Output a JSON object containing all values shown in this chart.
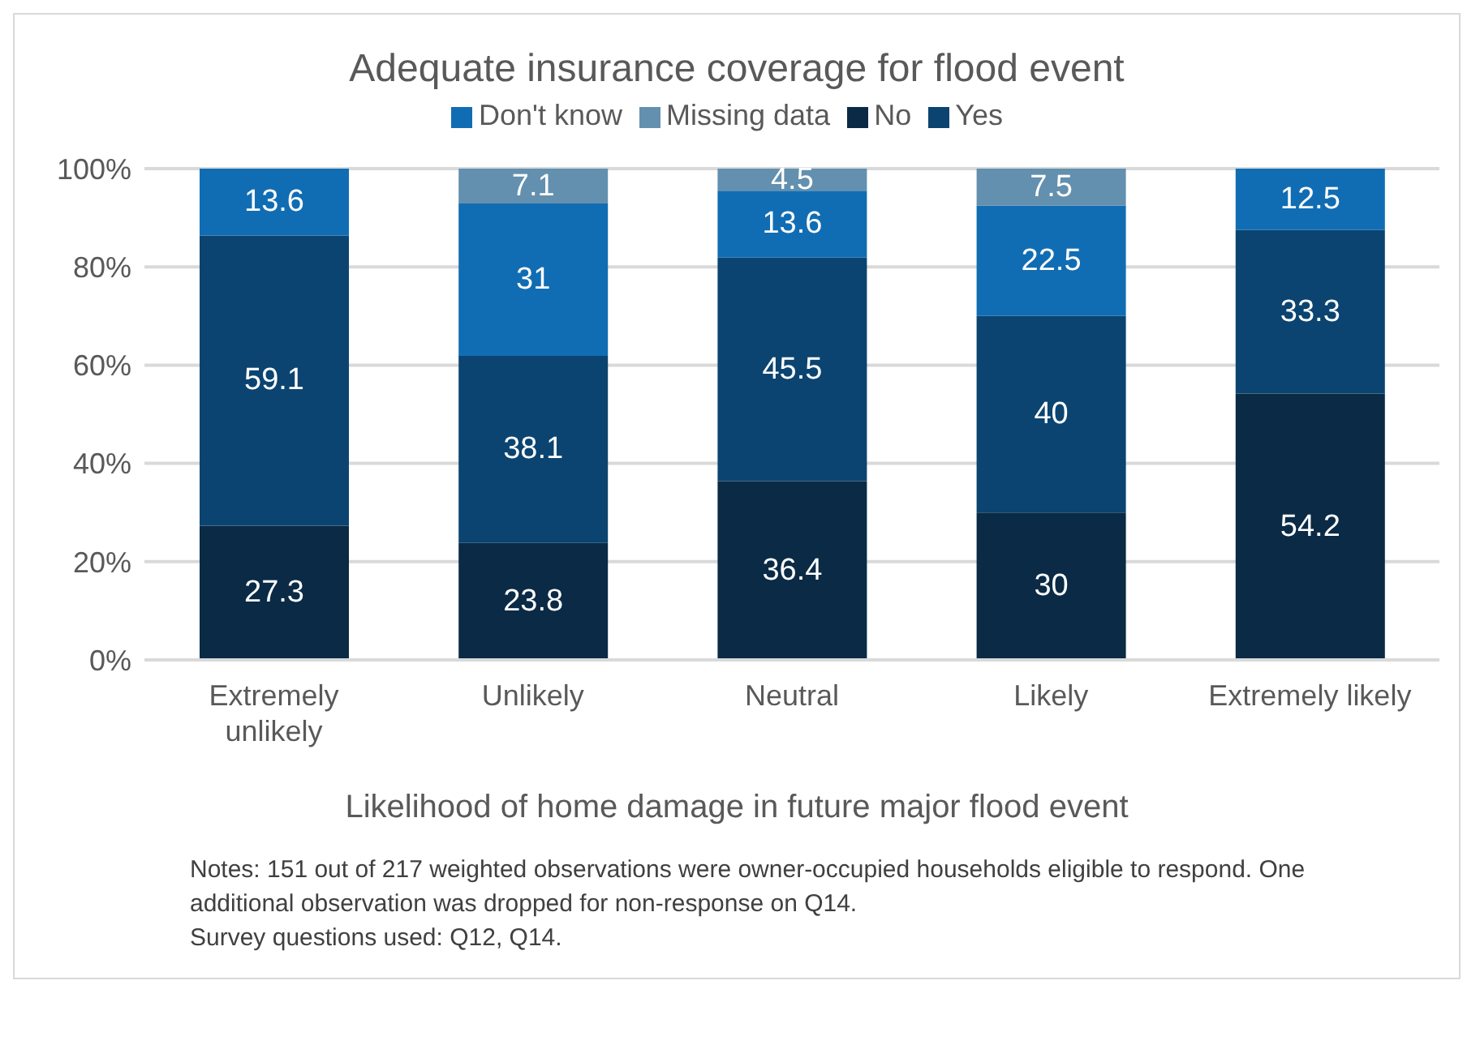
{
  "chart_data": {
    "type": "bar",
    "title": "Adequate insurance coverage for flood event",
    "xlabel": "Likelihood of home damage in future major flood event",
    "categories": [
      "Extremely unlikely",
      "Unlikely",
      "Neutral",
      "Likely",
      "Extremely likely"
    ],
    "series": [
      {
        "name": "No",
        "color": "#0a2a45",
        "values": [
          27.3,
          23.8,
          36.4,
          30,
          54.2
        ]
      },
      {
        "name": "Yes",
        "color": "#0b4470",
        "values": [
          59.1,
          38.1,
          45.5,
          40,
          33.3
        ]
      },
      {
        "name": "Don't know",
        "color": "#116db3",
        "values": [
          13.6,
          31,
          13.6,
          22.5,
          12.5
        ]
      },
      {
        "name": "Missing data",
        "color": "#6390ae",
        "values": [
          null,
          7.1,
          4.5,
          7.5,
          null
        ]
      }
    ],
    "stacked": true,
    "data_labels": true,
    "grid": "y",
    "legend": "top",
    "ylim": [
      0,
      100
    ],
    "yticks": [
      {
        "value": 0,
        "label": "0%"
      },
      {
        "value": 20,
        "label": "20%"
      },
      {
        "value": 40,
        "label": "40%"
      },
      {
        "value": 60,
        "label": "60%"
      },
      {
        "value": 80,
        "label": "80%"
      },
      {
        "value": 100,
        "label": "100%"
      }
    ],
    "annotations": [
      "Notes: 151 out of 217 weighted observations were owner-occupied households eligible to respond. One additional observation was dropped for non-response on Q14.",
      "Survey questions used: Q12, Q14."
    ]
  }
}
